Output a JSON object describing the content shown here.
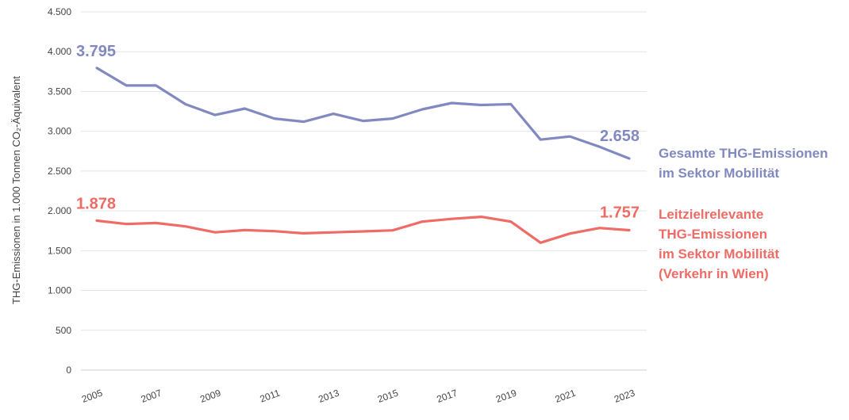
{
  "chart_data": {
    "type": "line",
    "ylabel": "THG-Emissionen in 1.000 Tonnen CO₂-Äquivalent",
    "ylim": [
      0,
      4500
    ],
    "yticks": [
      0,
      500,
      1000,
      1500,
      2000,
      2500,
      3000,
      3500,
      4000,
      4500
    ],
    "ytick_labels": [
      "0",
      "500",
      "1.000",
      "1.500",
      "2.000",
      "2.500",
      "3.000",
      "3.500",
      "4.000",
      "4.500"
    ],
    "x": [
      2005,
      2006,
      2007,
      2008,
      2009,
      2010,
      2011,
      2012,
      2013,
      2014,
      2015,
      2016,
      2017,
      2018,
      2019,
      2020,
      2021,
      2022,
      2023
    ],
    "xtick_labels": [
      "2005",
      "2007",
      "2009",
      "2011",
      "2013",
      "2015",
      "2017",
      "2019",
      "2021",
      "2023"
    ],
    "grid": true,
    "series": [
      {
        "name": "Gesamte THG-Emissionen im Sektor Mobilität",
        "legend_lines": [
          "Gesamte THG-Emissionen",
          "im Sektor Mobilität"
        ],
        "color": "#8189C0",
        "values": [
          3795,
          3575,
          3575,
          3340,
          3205,
          3285,
          3160,
          3120,
          3220,
          3130,
          3160,
          3275,
          3355,
          3330,
          3340,
          2895,
          2935,
          2805,
          2658
        ],
        "start_label": "3.795",
        "end_label": "2.658"
      },
      {
        "name": "Leitzielrelevante THG-Emissionen im Sektor Mobilität (Verkehr in Wien)",
        "legend_lines": [
          "Leitzielrelevante",
          "THG-Emissionen",
          "im Sektor Mobilität",
          "(Verkehr in Wien)"
        ],
        "color": "#EE6B66",
        "values": [
          1878,
          1835,
          1848,
          1805,
          1730,
          1758,
          1745,
          1718,
          1730,
          1742,
          1755,
          1865,
          1900,
          1925,
          1865,
          1600,
          1715,
          1785,
          1757
        ],
        "start_label": "1.878",
        "end_label": "1.757"
      }
    ]
  }
}
